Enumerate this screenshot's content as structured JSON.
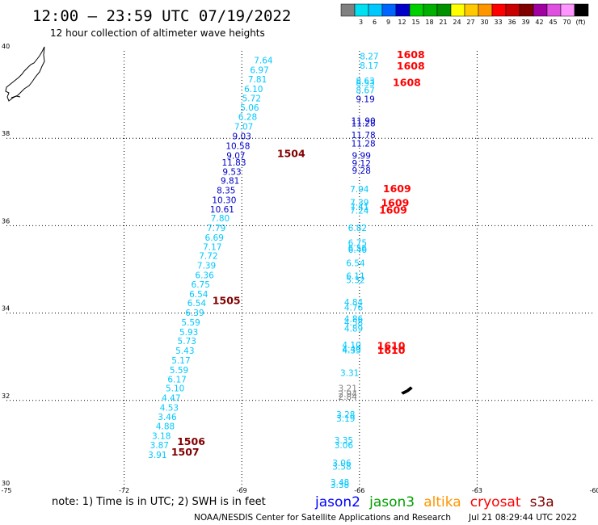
{
  "title": "12:00 – 23:59 UTC 07/19/2022",
  "subtitle": "12 hour collection of altimeter wave heights",
  "colorbar": {
    "bins": [
      {
        "color": "#808080",
        "label": ""
      },
      {
        "color": "#00e0f0",
        "label": "3"
      },
      {
        "color": "#00c8ff",
        "label": "6"
      },
      {
        "color": "#0064ff",
        "label": "9"
      },
      {
        "color": "#0000c8",
        "label": "12"
      },
      {
        "color": "#00d000",
        "label": "15"
      },
      {
        "color": "#00b000",
        "label": "18"
      },
      {
        "color": "#009000",
        "label": "21"
      },
      {
        "color": "#ffff00",
        "label": "24"
      },
      {
        "color": "#ffc800",
        "label": "27"
      },
      {
        "color": "#ff9600",
        "label": "30"
      },
      {
        "color": "#ff0000",
        "label": "33"
      },
      {
        "color": "#c80000",
        "label": "36"
      },
      {
        "color": "#800000",
        "label": "39"
      },
      {
        "color": "#a000a0",
        "label": "42"
      },
      {
        "color": "#e050e0",
        "label": "45"
      },
      {
        "color": "#ff96ff",
        "label": "70"
      },
      {
        "color": "#000000",
        "label": "(ft)"
      }
    ]
  },
  "note": "note:  1) Time is in UTC;  2) SWH is in feet",
  "missions": [
    {
      "name": "jason2",
      "color": "#0000ff"
    },
    {
      "name": "jason3",
      "color": "#00a000"
    },
    {
      "name": "altika",
      "color": "#ff9600"
    },
    {
      "name": "cryosat",
      "color": "#ff0000"
    },
    {
      "name": "s3a",
      "color": "#800000"
    }
  ],
  "footer": {
    "left": "NOAA/NESDIS Center for Satellite Applications and Research",
    "right": "Jul 21 08:29:44 UTC 2022"
  },
  "chart_data": {
    "type": "scatter",
    "xlim": [
      -75,
      -60
    ],
    "ylim": [
      30,
      40
    ],
    "x_ticks": [
      "-75",
      "-72",
      "-69",
      "-66",
      "-63",
      "-60"
    ],
    "y_ticks": [
      "40",
      "38",
      "36",
      "34",
      "32",
      "30"
    ],
    "grid": true,
    "colors": {
      "cyan": "#00c8ff",
      "blue": "#0000c8",
      "gray": "#808080",
      "red": "#ff0000",
      "darkred": "#800000"
    },
    "series": [
      {
        "name": "s3a",
        "points": [
          {
            "lon": -68.45,
            "lat": 39.79,
            "swh": "7.64",
            "c": "cyan"
          },
          {
            "lon": -68.55,
            "lat": 39.57,
            "swh": "6.97",
            "c": "cyan"
          },
          {
            "lon": -68.6,
            "lat": 39.35,
            "swh": "7.81",
            "c": "cyan"
          },
          {
            "lon": -68.7,
            "lat": 39.13,
            "swh": "6.10",
            "c": "cyan"
          },
          {
            "lon": -68.75,
            "lat": 38.92,
            "swh": "5.72",
            "c": "cyan"
          },
          {
            "lon": -68.8,
            "lat": 38.71,
            "swh": "5.06",
            "c": "cyan"
          },
          {
            "lon": -68.85,
            "lat": 38.49,
            "swh": "6.28",
            "c": "cyan"
          },
          {
            "lon": -68.95,
            "lat": 38.27,
            "swh": "7.07",
            "c": "cyan"
          },
          {
            "lon": -69.0,
            "lat": 38.05,
            "swh": "9.03",
            "c": "blue"
          },
          {
            "lon": -69.1,
            "lat": 37.83,
            "swh": "10.58",
            "c": "blue"
          },
          {
            "lon": -69.15,
            "lat": 37.61,
            "swh": "9.07",
            "c": "blue"
          },
          {
            "lon": -69.2,
            "lat": 37.45,
            "swh": "11.83",
            "c": "blue"
          },
          {
            "lon": -69.25,
            "lat": 37.24,
            "swh": "9.53",
            "c": "blue"
          },
          {
            "lon": -69.3,
            "lat": 37.03,
            "swh": "9.81",
            "c": "blue"
          },
          {
            "lon": -69.4,
            "lat": 36.81,
            "swh": "8.35",
            "c": "blue"
          },
          {
            "lon": -69.45,
            "lat": 36.59,
            "swh": "10.30",
            "c": "blue"
          },
          {
            "lon": -69.5,
            "lat": 36.38,
            "swh": "10.61",
            "c": "blue"
          },
          {
            "lon": -69.55,
            "lat": 36.17,
            "swh": "7.80",
            "c": "cyan"
          },
          {
            "lon": -69.65,
            "lat": 35.95,
            "swh": "7.79",
            "c": "cyan"
          },
          {
            "lon": -69.7,
            "lat": 35.73,
            "swh": "6.69",
            "c": "cyan"
          },
          {
            "lon": -69.75,
            "lat": 35.52,
            "swh": "7.17",
            "c": "cyan"
          },
          {
            "lon": -69.85,
            "lat": 35.31,
            "swh": "7.72",
            "c": "cyan"
          },
          {
            "lon": -69.9,
            "lat": 35.09,
            "swh": "7.39",
            "c": "cyan"
          },
          {
            "lon": -69.95,
            "lat": 34.87,
            "swh": "6.36",
            "c": "cyan"
          },
          {
            "lon": -70.05,
            "lat": 34.66,
            "swh": "6.75",
            "c": "cyan"
          },
          {
            "lon": -70.1,
            "lat": 34.44,
            "swh": "6.54",
            "c": "cyan"
          },
          {
            "lon": -70.15,
            "lat": 34.23,
            "swh": "6.54",
            "c": "cyan"
          },
          {
            "lon": -70.2,
            "lat": 34.01,
            "swh": "6.39",
            "c": "cyan"
          },
          {
            "lon": -70.3,
            "lat": 33.79,
            "swh": "5.59",
            "c": "cyan"
          },
          {
            "lon": -70.35,
            "lat": 33.57,
            "swh": "5.93",
            "c": "cyan"
          },
          {
            "lon": -70.4,
            "lat": 33.36,
            "swh": "5.73",
            "c": "cyan"
          },
          {
            "lon": -70.45,
            "lat": 33.14,
            "swh": "5.43",
            "c": "cyan"
          },
          {
            "lon": -70.55,
            "lat": 32.92,
            "swh": "5.17",
            "c": "cyan"
          },
          {
            "lon": -70.6,
            "lat": 32.7,
            "swh": "5.59",
            "c": "cyan"
          },
          {
            "lon": -70.65,
            "lat": 32.49,
            "swh": "6.17",
            "c": "cyan"
          },
          {
            "lon": -70.7,
            "lat": 32.28,
            "swh": "5.10",
            "c": "cyan"
          },
          {
            "lon": -70.8,
            "lat": 32.06,
            "swh": "4.47",
            "c": "cyan"
          },
          {
            "lon": -70.85,
            "lat": 31.84,
            "swh": "4.53",
            "c": "cyan"
          },
          {
            "lon": -70.9,
            "lat": 31.63,
            "swh": "3.46",
            "c": "cyan"
          },
          {
            "lon": -70.95,
            "lat": 31.41,
            "swh": "4.88",
            "c": "cyan"
          },
          {
            "lon": -71.05,
            "lat": 31.19,
            "swh": "3.18",
            "c": "cyan"
          },
          {
            "lon": -71.1,
            "lat": 30.98,
            "swh": "3.87",
            "c": "cyan"
          },
          {
            "lon": -71.15,
            "lat": 30.76,
            "swh": "3.91",
            "c": "cyan"
          }
        ],
        "times": [
          {
            "lon": -68.1,
            "lat": 37.64,
            "label": "1504",
            "c": "darkred"
          },
          {
            "lon": -69.75,
            "lat": 34.28,
            "label": "1505",
            "c": "darkred"
          },
          {
            "lon": -70.65,
            "lat": 31.05,
            "label": "1506",
            "c": "darkred"
          },
          {
            "lon": -70.8,
            "lat": 30.81,
            "label": "1507",
            "c": "darkred"
          }
        ]
      },
      {
        "name": "cryosat",
        "points": [
          {
            "lon": -65.75,
            "lat": 39.88,
            "swh": "8.27",
            "c": "cyan"
          },
          {
            "lon": -65.75,
            "lat": 39.67,
            "swh": "8.17",
            "c": "cyan"
          },
          {
            "lon": -65.85,
            "lat": 39.32,
            "swh": "8.63",
            "c": "cyan"
          },
          {
            "lon": -65.85,
            "lat": 39.27,
            "swh": "8.53",
            "c": "cyan"
          },
          {
            "lon": -65.85,
            "lat": 39.1,
            "swh": "8.67",
            "c": "cyan"
          },
          {
            "lon": -65.85,
            "lat": 38.9,
            "swh": "9.19",
            "c": "blue"
          },
          {
            "lon": -65.9,
            "lat": 38.4,
            "swh": "11.90",
            "c": "blue"
          },
          {
            "lon": -65.9,
            "lat": 38.35,
            "swh": "11.28",
            "c": "blue"
          },
          {
            "lon": -65.9,
            "lat": 38.08,
            "swh": "11.78",
            "c": "blue"
          },
          {
            "lon": -65.9,
            "lat": 37.88,
            "swh": "11.28",
            "c": "blue"
          },
          {
            "lon": -65.95,
            "lat": 37.61,
            "swh": "9.99",
            "c": "blue"
          },
          {
            "lon": -65.95,
            "lat": 37.43,
            "swh": "9.12",
            "c": "blue"
          },
          {
            "lon": -65.95,
            "lat": 37.26,
            "swh": "9.28",
            "c": "blue"
          },
          {
            "lon": -66.0,
            "lat": 36.84,
            "swh": "7.94",
            "c": "cyan"
          },
          {
            "lon": -66.0,
            "lat": 36.53,
            "swh": "7.39",
            "c": "cyan"
          },
          {
            "lon": -66.0,
            "lat": 36.43,
            "swh": "7.41",
            "c": "cyan"
          },
          {
            "lon": -66.0,
            "lat": 36.35,
            "swh": "7.24",
            "c": "cyan"
          },
          {
            "lon": -66.05,
            "lat": 35.95,
            "swh": "6.82",
            "c": "cyan"
          },
          {
            "lon": -66.05,
            "lat": 35.61,
            "swh": "6.75",
            "c": "cyan"
          },
          {
            "lon": -66.05,
            "lat": 35.49,
            "swh": "6.56",
            "c": "cyan"
          },
          {
            "lon": -66.05,
            "lat": 35.45,
            "swh": "6.46",
            "c": "cyan"
          },
          {
            "lon": -66.1,
            "lat": 35.15,
            "swh": "6.54",
            "c": "cyan"
          },
          {
            "lon": -66.1,
            "lat": 34.85,
            "swh": "6.11",
            "c": "cyan"
          },
          {
            "lon": -66.1,
            "lat": 34.76,
            "swh": "5.32",
            "c": "cyan"
          },
          {
            "lon": -66.15,
            "lat": 34.25,
            "swh": "4.84",
            "c": "cyan"
          },
          {
            "lon": -66.15,
            "lat": 34.13,
            "swh": "4.76",
            "c": "cyan"
          },
          {
            "lon": -66.15,
            "lat": 33.87,
            "swh": "4.86",
            "c": "cyan"
          },
          {
            "lon": -66.15,
            "lat": 33.79,
            "swh": "4.58",
            "c": "cyan"
          },
          {
            "lon": -66.15,
            "lat": 33.65,
            "swh": "4.89",
            "c": "cyan"
          },
          {
            "lon": -66.2,
            "lat": 33.27,
            "swh": "4.10",
            "c": "cyan"
          },
          {
            "lon": -66.2,
            "lat": 33.18,
            "swh": "4.40",
            "c": "cyan"
          },
          {
            "lon": -66.2,
            "lat": 33.15,
            "swh": "4.35",
            "c": "cyan"
          },
          {
            "lon": -66.25,
            "lat": 32.63,
            "swh": "3.31",
            "c": "cyan"
          },
          {
            "lon": -66.3,
            "lat": 32.28,
            "swh": "3.21",
            "c": "gray"
          },
          {
            "lon": -66.3,
            "lat": 32.15,
            "swh": "2.94",
            "c": "gray"
          },
          {
            "lon": -66.3,
            "lat": 32.09,
            "swh": "2.84",
            "c": "gray"
          },
          {
            "lon": -66.35,
            "lat": 31.68,
            "swh": "3.28",
            "c": "cyan"
          },
          {
            "lon": -66.35,
            "lat": 31.59,
            "swh": "3.19",
            "c": "cyan"
          },
          {
            "lon": -66.4,
            "lat": 31.09,
            "swh": "3.35",
            "c": "cyan"
          },
          {
            "lon": -66.4,
            "lat": 30.98,
            "swh": "3.06",
            "c": "cyan"
          },
          {
            "lon": -66.45,
            "lat": 30.57,
            "swh": "3.06",
            "c": "cyan"
          },
          {
            "lon": -66.45,
            "lat": 30.49,
            "swh": "3.58",
            "c": "cyan"
          },
          {
            "lon": -66.5,
            "lat": 30.13,
            "swh": "3.48",
            "c": "cyan"
          },
          {
            "lon": -66.5,
            "lat": 30.07,
            "swh": "3.38",
            "c": "cyan"
          }
        ],
        "times": [
          {
            "lon": -65.05,
            "lat": 39.91,
            "label": "1608",
            "c": "red"
          },
          {
            "lon": -65.05,
            "lat": 39.65,
            "label": "1608",
            "c": "red"
          },
          {
            "lon": -65.15,
            "lat": 39.27,
            "label": "1608",
            "c": "red"
          },
          {
            "lon": -65.4,
            "lat": 36.84,
            "label": "1609",
            "c": "red"
          },
          {
            "lon": -65.45,
            "lat": 36.52,
            "label": "1609",
            "c": "red"
          },
          {
            "lon": -65.5,
            "lat": 36.35,
            "label": "1609",
            "c": "red"
          },
          {
            "lon": -65.55,
            "lat": 33.24,
            "label": "1610",
            "c": "red"
          },
          {
            "lon": -65.55,
            "lat": 33.14,
            "label": "1610",
            "c": "red"
          }
        ]
      }
    ]
  }
}
